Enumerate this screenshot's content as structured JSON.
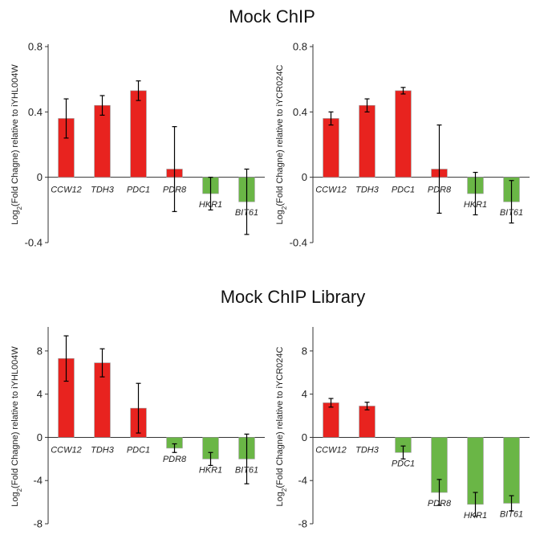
{
  "titles": {
    "top": "Mock ChIP",
    "bottom": "Mock ChIP Library"
  },
  "colors": {
    "positive": "#e8231f",
    "negative": "#6ab646",
    "error": "#000000",
    "axis": "#333333"
  },
  "chart_data": [
    {
      "type": "bar",
      "section": "Mock ChIP",
      "ylabel_prefix": "Log",
      "ylabel_sub": "2",
      "ylabel_rest": "(Fold Chagne) relative to iYHL004W",
      "categories": [
        "CCW12",
        "TDH3",
        "PDC1",
        "PDR8",
        "HKR1",
        "BIT61"
      ],
      "values": [
        0.36,
        0.44,
        0.53,
        0.05,
        -0.1,
        -0.15
      ],
      "errors": [
        0.12,
        0.06,
        0.06,
        0.26,
        0.1,
        0.2
      ],
      "ylim": [
        -0.4,
        0.8
      ],
      "yticks": [
        -0.4,
        0,
        0.4,
        0.8
      ],
      "ytick_labels": [
        "-0.4",
        "0",
        "0.4",
        "0.8"
      ]
    },
    {
      "type": "bar",
      "section": "Mock ChIP",
      "ylabel_prefix": "Log",
      "ylabel_sub": "2",
      "ylabel_rest": "(Fold Chagne) relative to iYCR024C",
      "categories": [
        "CCW12",
        "TDH3",
        "PDC1",
        "PDR8",
        "HKR1",
        "BIT61"
      ],
      "values": [
        0.36,
        0.44,
        0.53,
        0.05,
        -0.1,
        -0.15
      ],
      "errors": [
        0.04,
        0.04,
        0.02,
        0.27,
        0.13,
        0.13
      ],
      "ylim": [
        -0.4,
        0.8
      ],
      "yticks": [
        -0.4,
        0,
        0.4,
        0.8
      ],
      "ytick_labels": [
        "-0.4",
        "0",
        "0.4",
        "0.8"
      ]
    },
    {
      "type": "bar",
      "section": "Mock ChIP Library",
      "ylabel_prefix": "Log",
      "ylabel_sub": "2",
      "ylabel_rest": "(Fold Chagne) relative to iYHL004W",
      "categories": [
        "CCW12",
        "TDH3",
        "PDC1",
        "PDR8",
        "HKR1",
        "BIT61"
      ],
      "values": [
        7.3,
        6.9,
        2.7,
        -1.0,
        -2.0,
        -2.0
      ],
      "errors": [
        2.1,
        1.3,
        2.3,
        0.4,
        0.6,
        2.3
      ],
      "ylim": [
        -8,
        10
      ],
      "yticks": [
        -8,
        -4,
        0,
        4,
        8
      ],
      "ytick_labels": [
        "-8",
        "-4",
        "0",
        "4",
        "8"
      ]
    },
    {
      "type": "bar",
      "section": "Mock ChIP Library",
      "ylabel_prefix": "Log",
      "ylabel_sub": "2",
      "ylabel_rest": "(Fold Chagne) relative to iYCR024C",
      "categories": [
        "CCW12",
        "TDH3",
        "PDC1",
        "PDR8",
        "HKR1",
        "BIT61"
      ],
      "values": [
        3.2,
        2.9,
        -1.4,
        -5.1,
        -6.2,
        -6.1
      ],
      "errors": [
        0.4,
        0.35,
        0.6,
        1.2,
        1.1,
        0.7
      ],
      "ylim": [
        -8,
        10
      ],
      "yticks": [
        -8,
        -4,
        0,
        4,
        8
      ],
      "ytick_labels": [
        "-8",
        "-4",
        "0",
        "4",
        "8"
      ]
    }
  ]
}
